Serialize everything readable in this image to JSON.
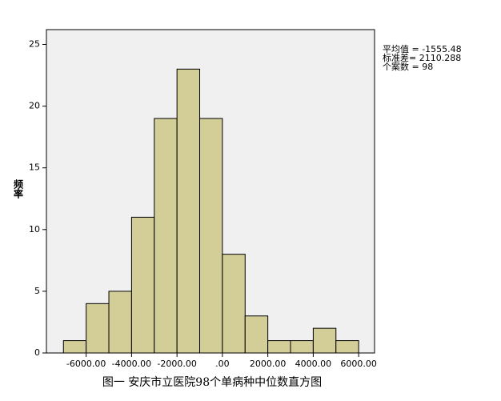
{
  "chart_data": {
    "type": "histogram",
    "title": "图一 安庆市立医院98个单病种中位数直方图",
    "y_label": "频率",
    "annotations": [
      "平均值 = -1555.48",
      "标准差= 2110.288",
      "个案数 = 98"
    ],
    "bins": [
      -7000,
      -6000,
      -5000,
      -4000,
      -3000,
      -2000,
      -1000,
      0,
      1000,
      2000,
      3000,
      4000,
      5000,
      6000
    ],
    "values": [
      1,
      4,
      5,
      11,
      19,
      23,
      19,
      8,
      3,
      1,
      1,
      2,
      1
    ],
    "color": "#d3ce97",
    "xlim": [
      -7750,
      6700
    ],
    "ylim": [
      0,
      26.2
    ],
    "xticks": [
      {
        "value": -6000,
        "label": "-6000.00"
      },
      {
        "value": -4000,
        "label": "-4000.00"
      },
      {
        "value": -2000,
        "label": "-2000.00"
      },
      {
        "value": 0,
        "label": ".00"
      },
      {
        "value": 2000,
        "label": "2000.00"
      },
      {
        "value": 4000,
        "label": "4000.00"
      },
      {
        "value": 6000,
        "label": "6000.00"
      }
    ],
    "yticks": [
      0,
      5,
      10,
      15,
      20,
      25
    ],
    "grid": false
  }
}
